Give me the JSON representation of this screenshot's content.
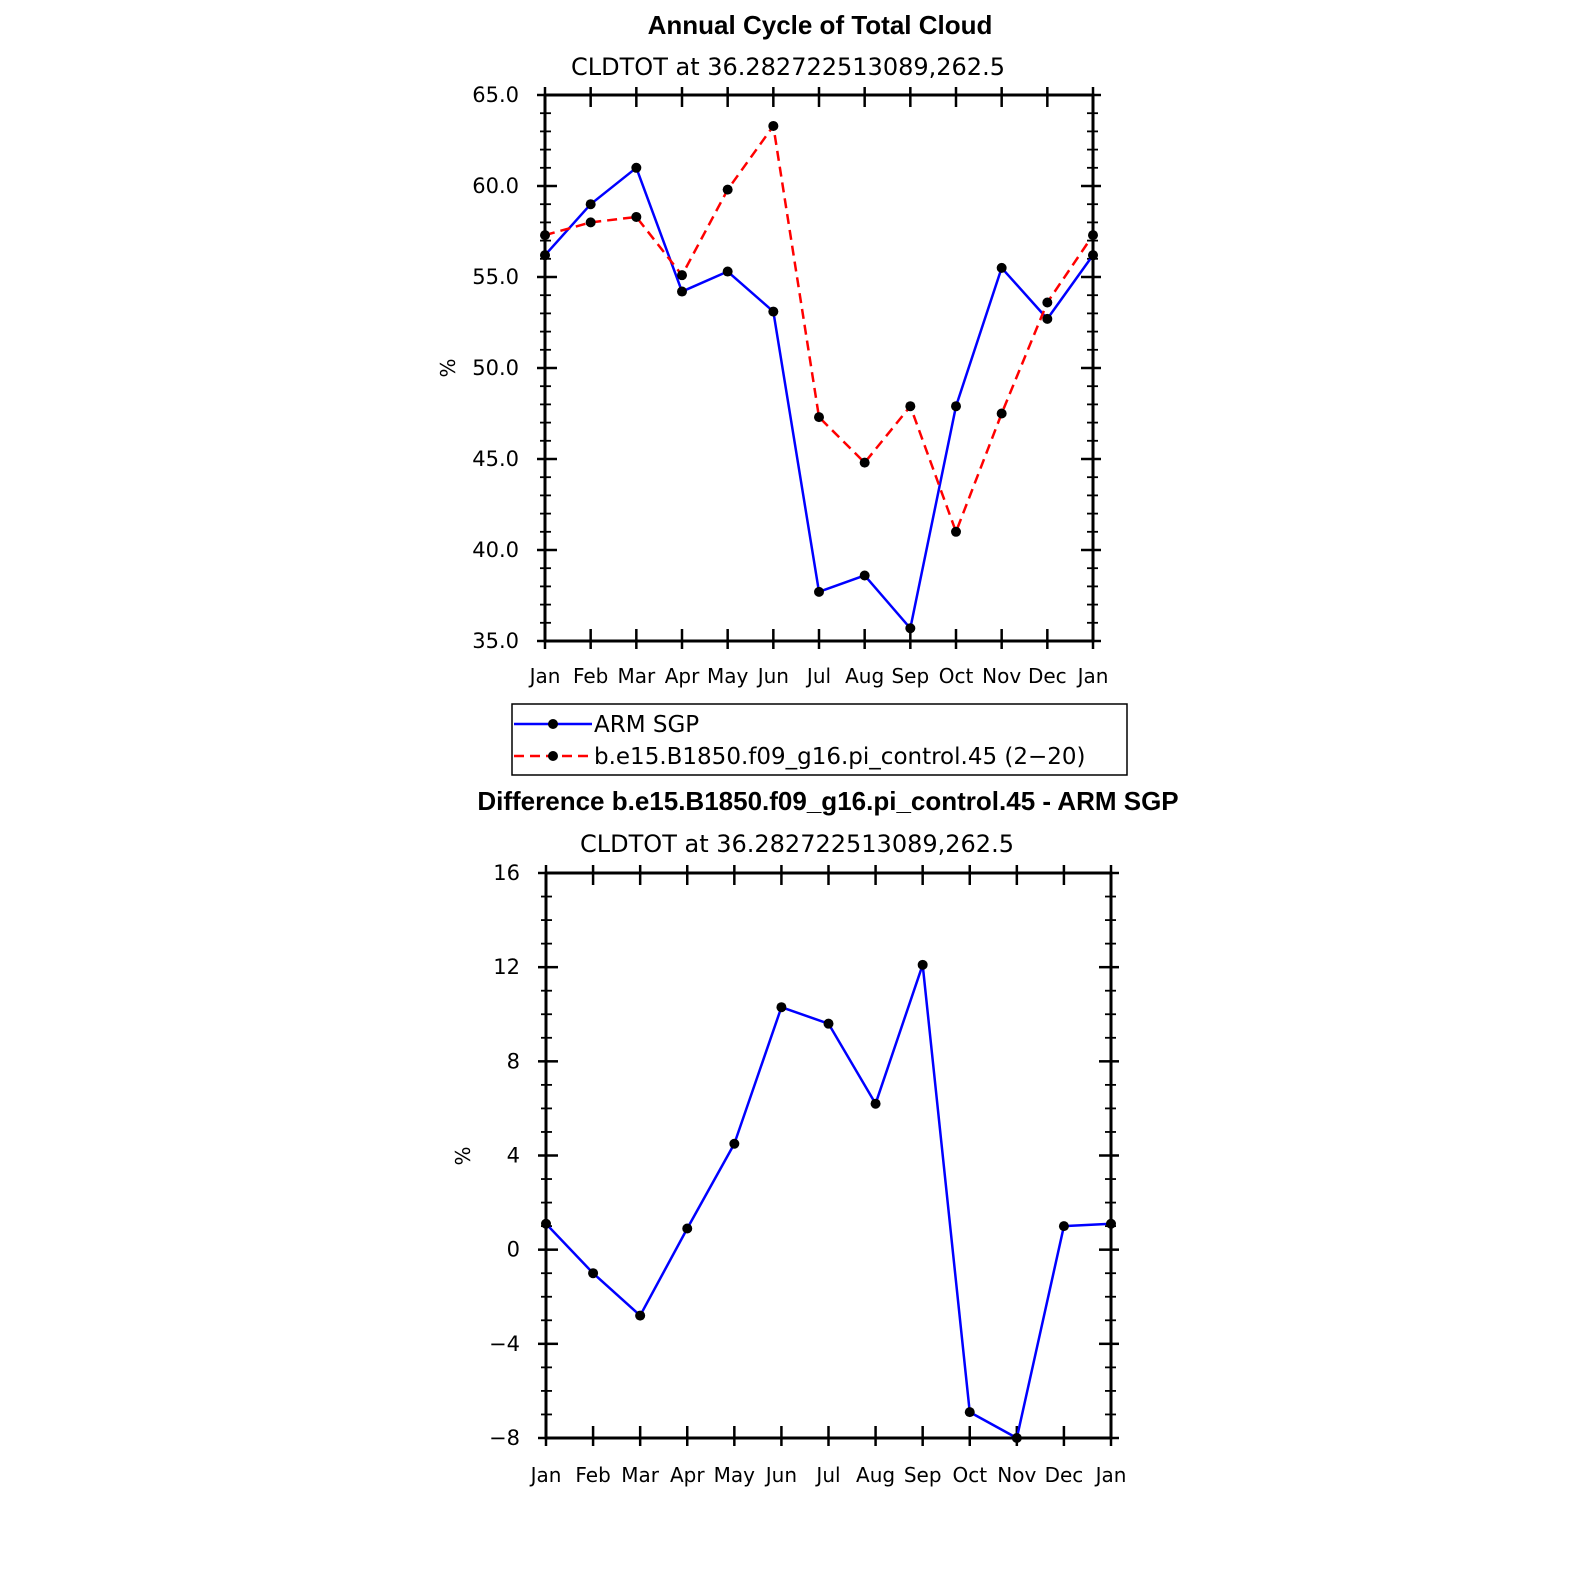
{
  "chart_data": [
    {
      "type": "line",
      "title": "Annual Cycle of Total Cloud",
      "subtitle": "CLDTOT at 36.282722513089,262.5",
      "xlabel": "",
      "ylabel": "%",
      "categories": [
        "Jan",
        "Feb",
        "Mar",
        "Apr",
        "May",
        "Jun",
        "Jul",
        "Aug",
        "Sep",
        "Oct",
        "Nov",
        "Dec",
        "Jan"
      ],
      "ylim": [
        35.0,
        65.0
      ],
      "yticks": [
        "35.0",
        "40.0",
        "45.0",
        "50.0",
        "55.0",
        "60.0",
        "65.0"
      ],
      "grid": false,
      "series": [
        {
          "name": "ARM SGP",
          "color": "#0000ff",
          "style": "solid",
          "values": [
            56.2,
            59.0,
            61.0,
            54.2,
            55.3,
            53.1,
            37.7,
            38.6,
            35.7,
            47.9,
            55.5,
            52.7,
            56.2
          ]
        },
        {
          "name": "b.e15.B1850.f09_g16.pi_control.45 (2−20)",
          "color": "#ff0000",
          "style": "dashed",
          "values": [
            57.3,
            58.0,
            58.3,
            55.1,
            59.8,
            63.3,
            47.3,
            44.8,
            47.9,
            41.0,
            47.5,
            53.6,
            57.3
          ]
        }
      ],
      "legend_position": "below"
    },
    {
      "type": "line",
      "title": "Difference b.e15.B1850.f09_g16.pi_control.45 - ARM SGP",
      "subtitle": "CLDTOT at 36.282722513089,262.5",
      "xlabel": "",
      "ylabel": "%",
      "categories": [
        "Jan",
        "Feb",
        "Mar",
        "Apr",
        "May",
        "Jun",
        "Jul",
        "Aug",
        "Sep",
        "Oct",
        "Nov",
        "Dec",
        "Jan"
      ],
      "ylim": [
        -8,
        16
      ],
      "yticks": [
        "−8",
        "−4",
        "0",
        "4",
        "8",
        "12",
        "16"
      ],
      "grid": false,
      "series": [
        {
          "color": "#0000ff",
          "style": "solid",
          "values": [
            1.1,
            -1.0,
            -2.8,
            0.9,
            4.5,
            10.3,
            9.6,
            6.2,
            12.1,
            -6.9,
            -8.0,
            1.0,
            1.1
          ]
        }
      ]
    }
  ]
}
